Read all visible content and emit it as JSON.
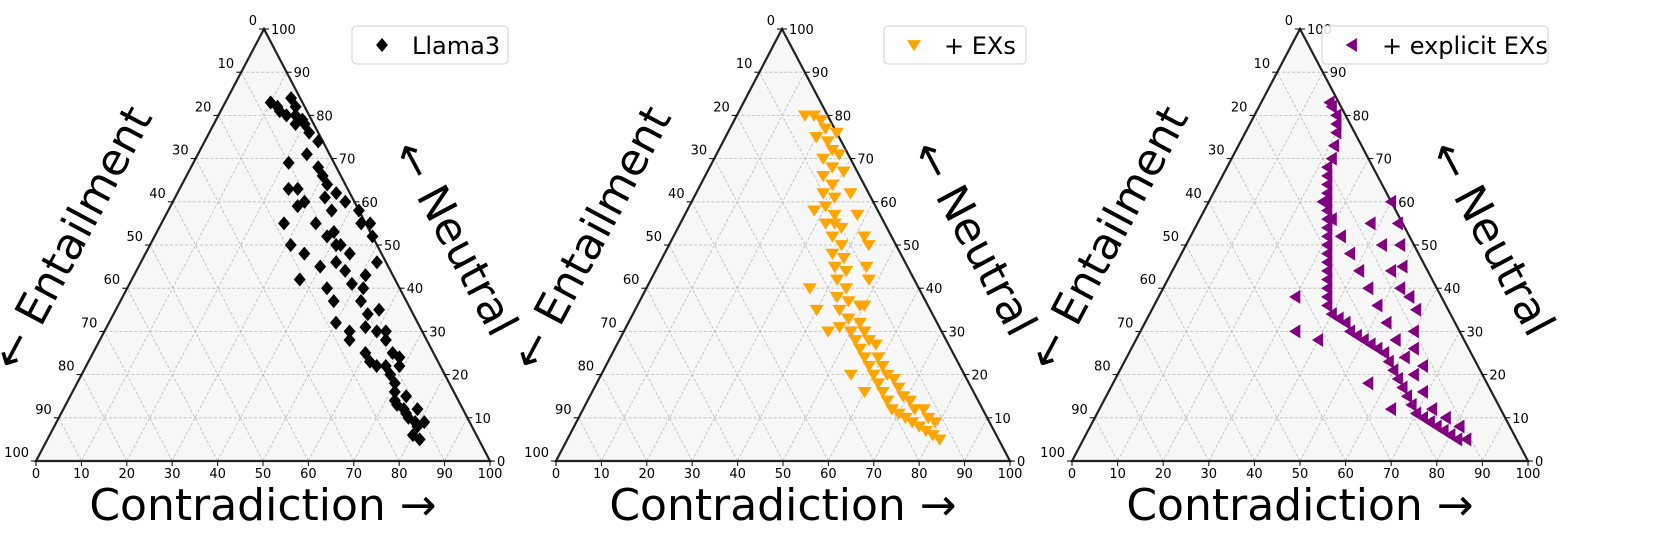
{
  "chart_data": [
    {
      "type": "ternary-scatter",
      "legend": "Llama3",
      "color": "#000000",
      "marker": "diamond",
      "axes": {
        "bottom": "Contradiction →",
        "left": "← Entailment",
        "right": "← Neutral"
      },
      "ticks": [
        0,
        10,
        20,
        30,
        40,
        50,
        60,
        70,
        80,
        90,
        100
      ],
      "points": [
        [
          10,
          83
        ],
        [
          12,
          82
        ],
        [
          13,
          81
        ],
        [
          15,
          80
        ],
        [
          17,
          80
        ],
        [
          18,
          78
        ],
        [
          20,
          78
        ],
        [
          14,
          84
        ],
        [
          16,
          82
        ],
        [
          19,
          79
        ],
        [
          22,
          76
        ],
        [
          25,
          74
        ],
        [
          24,
          71
        ],
        [
          28,
          68
        ],
        [
          30,
          66
        ],
        [
          32,
          64
        ],
        [
          26,
          63
        ],
        [
          21,
          69
        ],
        [
          29,
          60
        ],
        [
          36,
          58
        ],
        [
          34,
          55
        ],
        [
          38,
          52
        ],
        [
          41,
          50
        ],
        [
          35,
          62
        ],
        [
          43,
          46
        ],
        [
          46,
          44
        ],
        [
          49,
          41
        ],
        [
          53,
          37
        ],
        [
          44,
          55
        ],
        [
          48,
          52
        ],
        [
          55,
          28
        ],
        [
          52,
          40
        ],
        [
          58,
          35
        ],
        [
          60,
          30
        ],
        [
          60,
          25
        ],
        [
          62,
          23
        ],
        [
          64,
          22
        ],
        [
          66,
          22
        ],
        [
          68,
          20
        ],
        [
          70,
          18
        ],
        [
          71,
          16
        ],
        [
          72,
          14
        ],
        [
          73,
          13
        ],
        [
          75,
          12
        ],
        [
          76,
          11
        ],
        [
          77,
          10
        ],
        [
          79,
          9
        ],
        [
          80,
          8
        ],
        [
          80,
          6
        ],
        [
          82,
          5
        ],
        [
          81,
          9
        ],
        [
          78,
          12
        ],
        [
          74,
          15
        ],
        [
          68,
          24
        ],
        [
          62,
          30
        ],
        [
          56,
          34
        ],
        [
          52,
          46
        ],
        [
          42,
          58
        ],
        [
          38,
          60
        ],
        [
          33,
          61
        ],
        [
          28,
          59
        ],
        [
          45,
          48
        ],
        [
          40,
          45
        ],
        [
          35,
          48
        ],
        [
          31,
          50
        ],
        [
          27,
          55
        ],
        [
          24,
          63
        ],
        [
          50,
          32
        ],
        [
          57,
          31
        ],
        [
          63,
          28
        ],
        [
          66,
          25
        ],
        [
          69,
          22
        ],
        [
          47,
          37
        ],
        [
          44,
          40
        ],
        [
          51,
          43
        ],
        [
          39,
          53
        ],
        [
          46,
          55
        ],
        [
          42,
          50
        ],
        [
          37,
          42
        ],
        [
          54,
          30
        ]
      ]
    },
    {
      "type": "ternary-scatter",
      "legend": "+ EXs",
      "color": "#FFA500",
      "marker": "triangle-down",
      "axes": {
        "bottom": "Contradiction →",
        "left": "← Entailment",
        "right": "← Neutral"
      },
      "ticks": [
        0,
        10,
        20,
        30,
        40,
        50,
        60,
        70,
        80,
        90,
        100
      ],
      "points": [
        [
          15,
          80
        ],
        [
          17,
          80
        ],
        [
          19,
          79
        ],
        [
          21,
          77
        ],
        [
          20,
          75
        ],
        [
          23,
          74
        ],
        [
          25,
          72
        ],
        [
          24,
          70
        ],
        [
          27,
          68
        ],
        [
          26,
          66
        ],
        [
          29,
          64
        ],
        [
          28,
          62
        ],
        [
          31,
          61
        ],
        [
          30,
          59
        ],
        [
          33,
          57
        ],
        [
          34,
          55
        ],
        [
          36,
          54
        ],
        [
          35,
          52
        ],
        [
          38,
          50
        ],
        [
          37,
          48
        ],
        [
          40,
          47
        ],
        [
          39,
          45
        ],
        [
          42,
          44
        ],
        [
          41,
          42
        ],
        [
          44,
          40
        ],
        [
          43,
          38
        ],
        [
          46,
          37
        ],
        [
          45,
          35
        ],
        [
          48,
          33
        ],
        [
          47,
          31
        ],
        [
          50,
          30
        ],
        [
          52,
          28
        ],
        [
          54,
          26
        ],
        [
          56,
          24
        ],
        [
          58,
          22
        ],
        [
          60,
          20
        ],
        [
          62,
          18
        ],
        [
          64,
          16
        ],
        [
          66,
          14
        ],
        [
          68,
          12
        ],
        [
          70,
          11
        ],
        [
          72,
          10
        ],
        [
          74,
          9
        ],
        [
          76,
          8
        ],
        [
          78,
          7
        ],
        [
          80,
          6
        ],
        [
          82,
          5
        ],
        [
          79,
          9
        ],
        [
          75,
          12
        ],
        [
          71,
          14
        ],
        [
          67,
          17
        ],
        [
          63,
          20
        ],
        [
          59,
          24
        ],
        [
          55,
          28
        ],
        [
          51,
          32
        ],
        [
          49,
          36
        ],
        [
          53,
          30
        ],
        [
          57,
          27
        ],
        [
          61,
          22
        ],
        [
          65,
          19
        ],
        [
          69,
          15
        ],
        [
          73,
          12
        ],
        [
          77,
          10
        ],
        [
          42,
          52
        ],
        [
          38,
          57
        ],
        [
          34,
          62
        ],
        [
          30,
          67
        ],
        [
          27,
          71
        ],
        [
          24,
          76
        ],
        [
          45,
          30
        ],
        [
          40,
          35
        ],
        [
          36,
          40
        ],
        [
          46,
          45
        ],
        [
          50,
          36
        ],
        [
          44,
          50
        ],
        [
          48,
          42
        ],
        [
          32,
          55
        ],
        [
          28,
          58
        ],
        [
          55,
          20
        ],
        [
          60,
          16
        ]
      ]
    },
    {
      "type": "ternary-scatter",
      "legend": "+ explicit EXs",
      "color": "#800080",
      "marker": "triangle-left",
      "axes": {
        "bottom": "Contradiction →",
        "left": "← Entailment",
        "right": "← Neutral"
      },
      "ticks": [
        0,
        10,
        20,
        30,
        40,
        50,
        60,
        70,
        80,
        90,
        100
      ],
      "points": [
        [
          15,
          83
        ],
        [
          16,
          82
        ],
        [
          18,
          80
        ],
        [
          19,
          78
        ],
        [
          20,
          76
        ],
        [
          21,
          73
        ],
        [
          22,
          70
        ],
        [
          22,
          68
        ],
        [
          23,
          66
        ],
        [
          24,
          64
        ],
        [
          25,
          62
        ],
        [
          26,
          60
        ],
        [
          27,
          58
        ],
        [
          28,
          56
        ],
        [
          29,
          54
        ],
        [
          30,
          52
        ],
        [
          31,
          50
        ],
        [
          32,
          48
        ],
        [
          33,
          46
        ],
        [
          34,
          44
        ],
        [
          35,
          42
        ],
        [
          36,
          40
        ],
        [
          37,
          38
        ],
        [
          38,
          36
        ],
        [
          40,
          34
        ],
        [
          42,
          33
        ],
        [
          44,
          32
        ],
        [
          46,
          30
        ],
        [
          48,
          29
        ],
        [
          50,
          28
        ],
        [
          52,
          27
        ],
        [
          54,
          26
        ],
        [
          56,
          25
        ],
        [
          58,
          23
        ],
        [
          60,
          21
        ],
        [
          62,
          19
        ],
        [
          64,
          17
        ],
        [
          66,
          15
        ],
        [
          68,
          13
        ],
        [
          70,
          11
        ],
        [
          72,
          10
        ],
        [
          74,
          9
        ],
        [
          76,
          8
        ],
        [
          78,
          7
        ],
        [
          80,
          6
        ],
        [
          82,
          5
        ],
        [
          84,
          5
        ],
        [
          81,
          8
        ],
        [
          77,
          10
        ],
        [
          73,
          12
        ],
        [
          69,
          16
        ],
        [
          65,
          20
        ],
        [
          61,
          24
        ],
        [
          57,
          28
        ],
        [
          53,
          32
        ],
        [
          49,
          36
        ],
        [
          45,
          40
        ],
        [
          41,
          44
        ],
        [
          37,
          48
        ],
        [
          33,
          52
        ],
        [
          29,
          56
        ],
        [
          25,
          60
        ],
        [
          40,
          60
        ],
        [
          44,
          55
        ],
        [
          47,
          50
        ],
        [
          50,
          45
        ],
        [
          55,
          38
        ],
        [
          58,
          35
        ],
        [
          60,
          30
        ],
        [
          62,
          26
        ],
        [
          66,
          22
        ],
        [
          52,
          40
        ],
        [
          48,
          44
        ],
        [
          43,
          50
        ],
        [
          38,
          55
        ],
        [
          56,
          18
        ],
        [
          64,
          12
        ],
        [
          30,
          38
        ],
        [
          34,
          30
        ],
        [
          40,
          28
        ]
      ]
    }
  ]
}
